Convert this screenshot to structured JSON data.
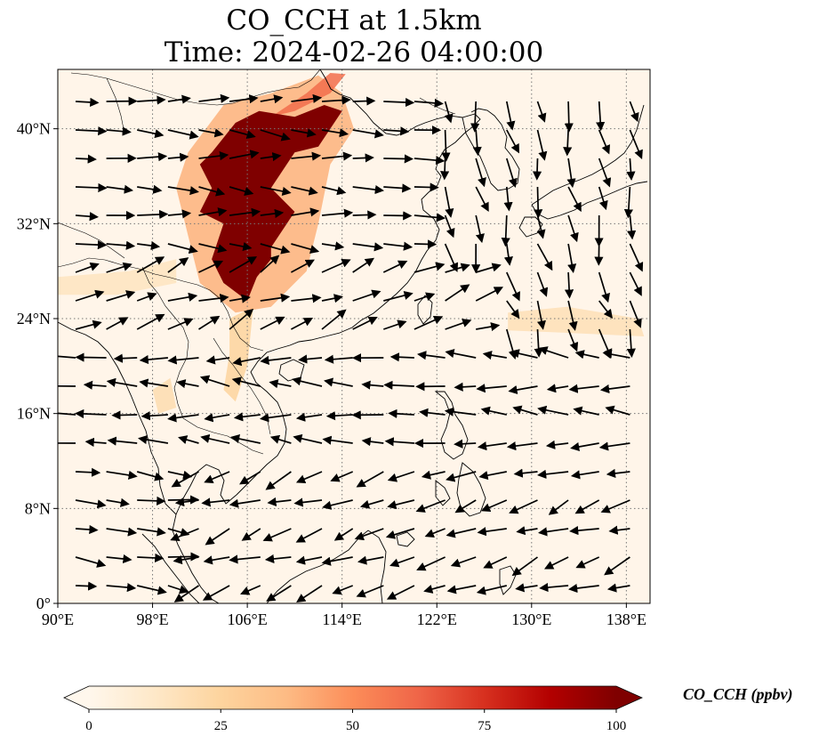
{
  "title": {
    "line1": "CO_CCH at 1.5km",
    "line2": "Time: 2024-02-26 04:00:00"
  },
  "map": {
    "extent": {
      "lon_min": 90,
      "lon_max": 140,
      "lat_min": 0,
      "lat_max": 45
    },
    "lat_ticks": [
      {
        "value": 0,
        "label": "0°"
      },
      {
        "value": 8,
        "label": "8°N"
      },
      {
        "value": 16,
        "label": "16°N"
      },
      {
        "value": 24,
        "label": "24°N"
      },
      {
        "value": 32,
        "label": "32°N"
      },
      {
        "value": 40,
        "label": "40°N"
      }
    ],
    "lon_ticks": [
      {
        "value": 90,
        "label": "90°E"
      },
      {
        "value": 98,
        "label": "98°E"
      },
      {
        "value": 106,
        "label": "106°E"
      },
      {
        "value": 114,
        "label": "114°E"
      },
      {
        "value": 122,
        "label": "122°E"
      },
      {
        "value": 130,
        "label": "130°E"
      },
      {
        "value": 138,
        "label": "138°E"
      }
    ],
    "gridlines": "dotted",
    "background_color": "#fff5e9",
    "plume_regions": [
      {
        "name": "north china core",
        "level": 100,
        "polygon": [
          [
            103,
            38
          ],
          [
            105,
            40.5
          ],
          [
            107,
            41.5
          ],
          [
            110,
            41
          ],
          [
            112.5,
            42
          ],
          [
            114,
            41.5
          ],
          [
            112,
            38.5
          ],
          [
            110,
            38
          ],
          [
            108,
            35
          ],
          [
            110,
            33
          ],
          [
            108,
            30
          ],
          [
            107,
            28
          ],
          [
            106,
            25.5
          ],
          [
            104,
            27
          ],
          [
            103,
            29
          ],
          [
            104,
            32
          ],
          [
            102,
            33
          ],
          [
            103,
            35
          ],
          [
            102,
            37
          ]
        ]
      },
      {
        "name": "sichuan basin",
        "level": 100,
        "polygon": [
          [
            103,
            29
          ],
          [
            104,
            32
          ],
          [
            106,
            33
          ],
          [
            108,
            32
          ],
          [
            108,
            29
          ],
          [
            106,
            26.5
          ],
          [
            104,
            27
          ]
        ]
      },
      {
        "name": "plume halo",
        "level": 40,
        "polygon": [
          [
            101,
            38
          ],
          [
            104,
            42
          ],
          [
            108,
            43
          ],
          [
            112,
            44.5
          ],
          [
            114,
            43
          ],
          [
            115,
            40
          ],
          [
            113,
            37
          ],
          [
            112,
            32
          ],
          [
            111,
            28
          ],
          [
            108,
            25
          ],
          [
            105,
            24.5
          ],
          [
            102,
            27
          ],
          [
            101,
            31
          ],
          [
            100,
            35
          ]
        ]
      },
      {
        "name": "northeast streak",
        "level": 60,
        "polygon": [
          [
            108,
            41
          ],
          [
            111,
            43
          ],
          [
            113,
            44.7
          ],
          [
            114.3,
            44.6
          ],
          [
            113,
            43
          ],
          [
            110,
            41.5
          ]
        ]
      },
      {
        "name": "vietnam streak",
        "level": 25,
        "polygon": [
          [
            104.5,
            24
          ],
          [
            106.5,
            25
          ],
          [
            106,
            20
          ],
          [
            105,
            17
          ],
          [
            104,
            18
          ],
          [
            104.5,
            21
          ]
        ]
      },
      {
        "name": "myanmar patch",
        "level": 20,
        "polygon": [
          [
            98,
            18
          ],
          [
            99.5,
            19
          ],
          [
            100,
            16.5
          ],
          [
            98.5,
            16
          ]
        ]
      },
      {
        "name": "pacific band",
        "level": 18,
        "polygon": [
          [
            128,
            24.5
          ],
          [
            133,
            25
          ],
          [
            139,
            24
          ],
          [
            139.5,
            22.5
          ],
          [
            133,
            22.8
          ],
          [
            128,
            23
          ]
        ]
      },
      {
        "name": "west band",
        "level": 15,
        "polygon": [
          [
            90,
            27.5
          ],
          [
            96,
            28
          ],
          [
            100,
            29
          ],
          [
            100,
            27
          ],
          [
            95,
            26
          ],
          [
            90,
            26
          ]
        ]
      }
    ],
    "wind_field_note": "black wind vectors on a regular grid"
  },
  "colorbar": {
    "label": "CO_CCH (ppbv)",
    "min": 0,
    "max": 100,
    "extend": "both",
    "cmap": [
      "#fff7ec",
      "#fee8c8",
      "#fdd49e",
      "#fdbb84",
      "#fc8d59",
      "#ef6548",
      "#d7301f",
      "#b30000",
      "#7f0000"
    ],
    "ticks": [
      {
        "value": 0,
        "label": "0"
      },
      {
        "value": 25,
        "label": "25"
      },
      {
        "value": 50,
        "label": "50"
      },
      {
        "value": 75,
        "label": "75"
      },
      {
        "value": 100,
        "label": "100"
      }
    ]
  },
  "icons": {
    "coastline": "coastline-lines",
    "wind": "wind-vector-arrows"
  }
}
